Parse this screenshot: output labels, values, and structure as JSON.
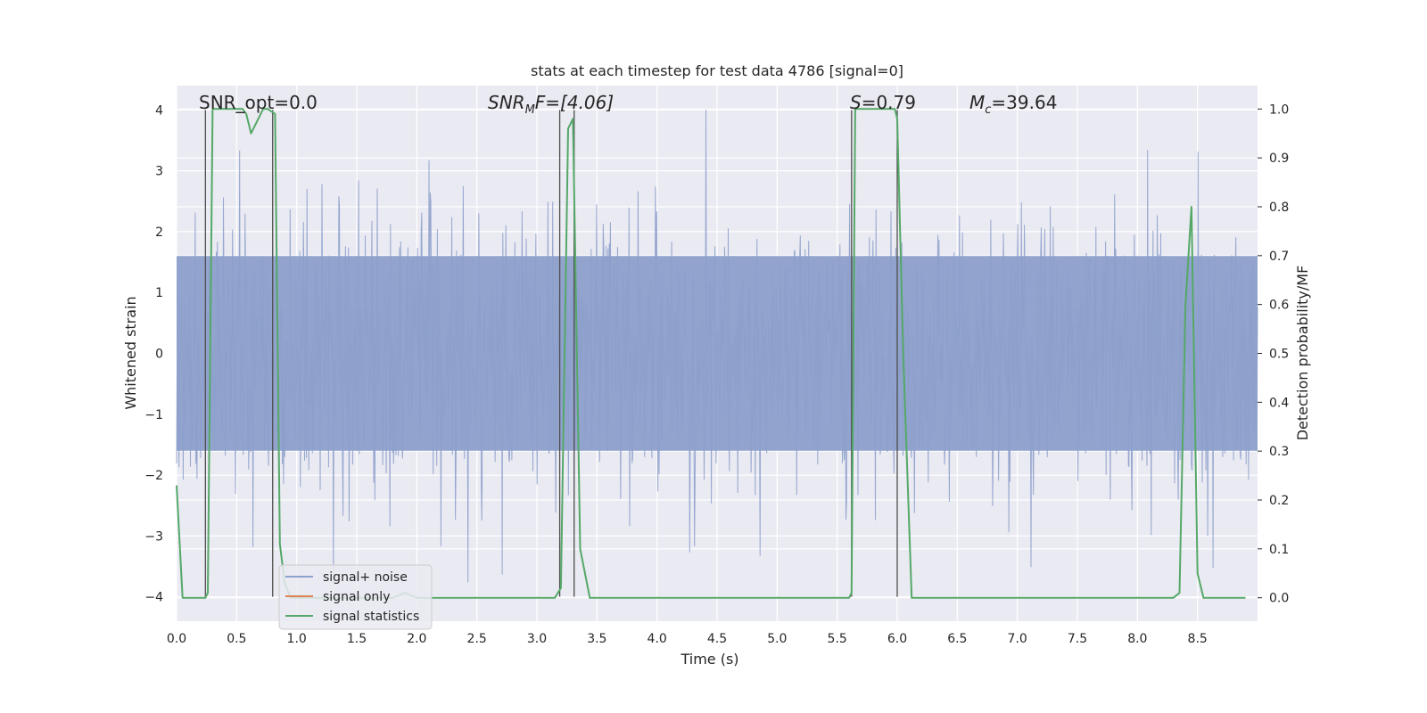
{
  "chart_data": {
    "type": "line",
    "title": "stats at each timestep for test data 4786 [signal=0]",
    "xlabel": "Time (s)",
    "ylabel": "Whitened strain",
    "y2label": "Detection probability/MF",
    "xlim": [
      0.0,
      9.0
    ],
    "ylim": [
      -4.4,
      4.4
    ],
    "y2lim": [
      -0.048,
      1.048
    ],
    "grid": true,
    "legend_position": "lower-left",
    "xticks": [
      "0.0",
      "0.5",
      "1.0",
      "1.5",
      "2.0",
      "2.5",
      "3.0",
      "3.5",
      "4.0",
      "4.5",
      "5.0",
      "5.5",
      "6.0",
      "6.5",
      "7.0",
      "7.5",
      "8.0",
      "8.5"
    ],
    "yticks": [
      "−4",
      "−3",
      "−2",
      "−1",
      "0",
      "1",
      "2",
      "3",
      "4"
    ],
    "y2ticks": [
      "0.0",
      "0.1",
      "0.2",
      "0.3",
      "0.4",
      "0.5",
      "0.6",
      "0.7",
      "0.8",
      "0.9",
      "1.0"
    ],
    "annotations": {
      "snr_opt": "SNR_opt=0.0",
      "snr_mf_prefix": "SNR",
      "snr_mf_sub": "M",
      "snr_mf_suffix": "F=[4.06]",
      "s_prefix": "S",
      "s_suffix": "=0.79",
      "mc_prefix": "M",
      "mc_sub": "c",
      "mc_suffix": "=39.64"
    },
    "series": [
      {
        "name": "signal+ noise",
        "axis": "left",
        "color": "#8da0cb",
        "noise_envelope": {
          "core_abs": 1.6,
          "typical_abs": 2.4,
          "max_abs": 4.0
        }
      },
      {
        "name": "signal only",
        "axis": "left",
        "color": "#dd8452",
        "values": []
      },
      {
        "name": "signal statistics",
        "axis": "right",
        "color": "#55a868",
        "x": [
          0.0,
          0.05,
          0.24,
          0.26,
          0.3,
          0.32,
          0.55,
          0.58,
          0.62,
          0.66,
          0.72,
          0.76,
          0.82,
          0.86,
          0.9,
          0.95,
          1.1,
          1.8,
          1.9,
          2.0,
          3.15,
          3.2,
          3.26,
          3.3,
          3.36,
          3.44,
          5.6,
          5.62,
          5.65,
          5.7,
          5.98,
          6.0,
          6.05,
          6.12,
          6.2,
          8.3,
          8.35,
          8.4,
          8.45,
          8.5,
          8.55,
          8.9
        ],
        "values": [
          0.23,
          0.0,
          0.0,
          0.01,
          1.0,
          1.0,
          1.0,
          0.99,
          0.95,
          0.97,
          1.0,
          1.0,
          0.99,
          0.11,
          0.03,
          0.0,
          0.0,
          0.0,
          0.01,
          0.0,
          0.0,
          0.02,
          0.96,
          0.98,
          0.1,
          0.0,
          0.0,
          0.01,
          1.0,
          1.0,
          1.0,
          0.98,
          0.5,
          0.0,
          0.0,
          0.0,
          0.01,
          0.6,
          0.8,
          0.05,
          0.0,
          0.0
        ]
      }
    ],
    "vertical_lines_x": [
      0.24,
      0.8,
      3.19,
      3.31,
      5.62,
      6.0
    ],
    "vertical_lines_range": [
      -4.0,
      4.0
    ],
    "colors": {
      "plot_bg": "#eaeaf2",
      "grid": "#ffffff",
      "vline": "#4d4d4d"
    }
  }
}
